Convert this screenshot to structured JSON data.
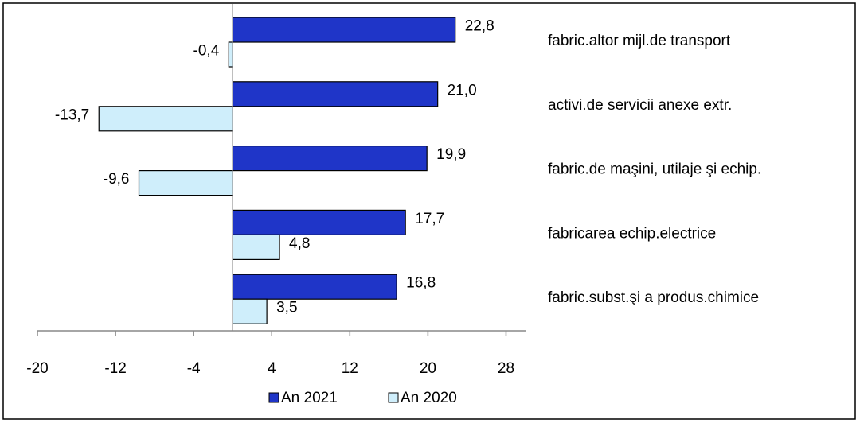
{
  "chart_data": {
    "type": "hbar",
    "categories": [
      "fabric.altor mijl.de transport",
      "activi.de servicii anexe extr.",
      "fabric.de maşini, utilaje şi echip.",
      "fabricarea echip.electrice",
      "fabric.subst.şi a produs.chimice"
    ],
    "series": [
      {
        "name": "An 2021",
        "color": "#1f35c8",
        "values": [
          22.8,
          21.0,
          19.9,
          17.7,
          16.8
        ],
        "value_labels": [
          "22,8",
          "21,0",
          "19,9",
          "17,7",
          "16,8"
        ]
      },
      {
        "name": "An 2020",
        "color": "#cfeefb",
        "values": [
          -0.4,
          -13.7,
          -9.6,
          4.8,
          3.5
        ],
        "value_labels": [
          "-0,4",
          "-13,7",
          "-9,6",
          "4,8",
          "3,5"
        ]
      }
    ],
    "xlim": [
      -20,
      30
    ],
    "xticks": [
      -20,
      -12,
      -4,
      4,
      12,
      20,
      28
    ],
    "legend": "bottom"
  }
}
